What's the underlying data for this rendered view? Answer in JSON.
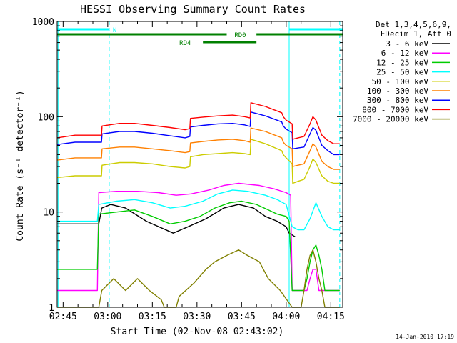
{
  "chart_data": {
    "type": "line",
    "title": "HESSI Observing Summary Count Rates",
    "xlabel": "Start Time (02-Nov-08 02:43:02)",
    "ylabel": "Count Rate (s⁻¹ detector⁻¹)",
    "footer": "14-Jan-2010 17:19",
    "x_unit": "minutes of day (UT)",
    "xlim": [
      163,
      259
    ],
    "ylim": [
      1,
      1000
    ],
    "y_scale": "log",
    "x_ticks": [
      {
        "value": 165,
        "label": "02:45"
      },
      {
        "value": 180,
        "label": "03:00"
      },
      {
        "value": 195,
        "label": "03:15"
      },
      {
        "value": 210,
        "label": "03:30"
      },
      {
        "value": 225,
        "label": "03:45"
      },
      {
        "value": 240,
        "label": "04:00"
      },
      {
        "value": 255,
        "label": "04:15"
      }
    ],
    "y_ticks": [
      {
        "value": 1,
        "label": "1"
      },
      {
        "value": 10,
        "label": "10"
      },
      {
        "value": 100,
        "label": "100"
      },
      {
        "value": 1000,
        "label": "1000"
      }
    ],
    "legend_header": [
      "Det 1,3,4,5,6,9,",
      "FDecim 1, Att 0"
    ],
    "legend_placement": "right",
    "series": [
      {
        "name": "3 - 6 keV",
        "color": "#000000",
        "x": [
          163,
          177,
          178,
          181,
          186,
          193,
          202,
          207,
          213,
          219,
          224,
          229,
          233,
          237,
          240,
          241,
          243
        ],
        "y": [
          7.5,
          7.5,
          11,
          12,
          11,
          8,
          6,
          7,
          8.5,
          11,
          12,
          11,
          9,
          8,
          7,
          6,
          5.5
        ]
      },
      {
        "name": "6 - 12 keV",
        "color": "#ff00ff",
        "x": [
          163,
          176.5,
          177,
          183,
          190,
          197,
          203,
          208,
          214,
          219,
          224,
          231,
          236,
          240,
          241.5,
          242,
          246,
          247,
          248,
          249,
          250,
          251,
          252,
          253.5,
          254,
          256,
          258
        ],
        "y": [
          1.5,
          1.5,
          16,
          16.5,
          16.5,
          16,
          15,
          15.5,
          17,
          19,
          20,
          19,
          17.5,
          16,
          15,
          1.5,
          1.5,
          1.5,
          2,
          2.5,
          2.5,
          1.5,
          1.5,
          1.5,
          1.5,
          1.5,
          1.5
        ]
      },
      {
        "name": "12 - 25 keV",
        "color": "#00cc00",
        "x": [
          163,
          176.5,
          177,
          183,
          189,
          195,
          201,
          206,
          211,
          216,
          221,
          225,
          230,
          234,
          237,
          240,
          241,
          242,
          246,
          247,
          248,
          249,
          250,
          251,
          252,
          253,
          254,
          256,
          258
        ],
        "y": [
          2.5,
          2.5,
          9.5,
          10,
          10.5,
          9,
          7.5,
          8,
          9,
          11,
          12.5,
          13,
          12,
          10.5,
          9.5,
          9,
          8,
          1.5,
          1.5,
          2,
          3,
          4,
          4.5,
          3.5,
          2.5,
          1.5,
          1.5,
          1.5,
          1.5
        ]
      },
      {
        "name": "25 - 50 keV",
        "color": "#00ffff",
        "x": [
          163,
          176.5,
          177,
          183,
          189,
          195,
          201,
          206,
          212,
          217,
          222,
          227,
          233,
          237,
          240,
          242,
          244,
          246,
          248,
          250,
          252,
          254,
          256,
          258
        ],
        "y": [
          8,
          8,
          12,
          13,
          13.5,
          12.5,
          11,
          11.5,
          13,
          15.5,
          17,
          16.5,
          15,
          13.5,
          12,
          7,
          6.5,
          6.5,
          8.5,
          12.5,
          9,
          7,
          6.5,
          6.5
        ]
      },
      {
        "name": "50 - 100 keV",
        "color": "#cccc00",
        "x": [
          163,
          169,
          177.9,
          178.1,
          184,
          189,
          195,
          201,
          206,
          207.6,
          207.8,
          212,
          217,
          222,
          226,
          227.9,
          228.1,
          233,
          238.5,
          239,
          240,
          242,
          242.2,
          244,
          246,
          248,
          249,
          250,
          252,
          254,
          256,
          258
        ],
        "y": [
          23,
          24,
          24,
          31,
          33,
          33,
          32,
          30,
          29,
          30,
          38,
          40,
          41,
          42,
          41,
          40,
          58,
          52,
          44,
          40,
          37,
          32,
          20,
          21,
          22,
          30,
          36,
          33,
          24,
          21,
          20,
          20
        ]
      },
      {
        "name": "100 - 300 keV",
        "color": "#ff8000",
        "x": [
          163,
          169,
          177.9,
          178.1,
          184,
          189,
          195,
          201,
          206,
          207.6,
          207.8,
          212,
          217,
          222,
          226,
          227.9,
          228.1,
          233,
          238.5,
          239,
          240,
          242,
          242.2,
          244,
          246,
          248,
          249,
          250,
          252,
          254,
          256,
          258
        ],
        "y": [
          35,
          37,
          37,
          46,
          48,
          48,
          46,
          44,
          42,
          43,
          53,
          55,
          57,
          58,
          56,
          54,
          76,
          70,
          60,
          54,
          50,
          46,
          30,
          31,
          32,
          44,
          52,
          48,
          34,
          30,
          28,
          28
        ]
      },
      {
        "name": "300 - 800 keV",
        "color": "#0000ff",
        "x": [
          163,
          169,
          177.9,
          178.1,
          184,
          189,
          195,
          201,
          206,
          207.6,
          207.8,
          212,
          217,
          222,
          226,
          227.9,
          228.1,
          233,
          238.5,
          239,
          240,
          242,
          242.2,
          244,
          246,
          248,
          249,
          250,
          252,
          254,
          256,
          258
        ],
        "y": [
          51,
          54,
          54,
          66,
          70,
          70,
          67,
          63,
          60,
          62,
          78,
          81,
          84,
          85,
          82,
          79,
          112,
          102,
          88,
          80,
          74,
          68,
          46,
          47,
          48,
          66,
          77,
          72,
          50,
          44,
          40,
          40
        ]
      },
      {
        "name": "800 - 7000 keV",
        "color": "#ff0000",
        "x": [
          163,
          169,
          177.9,
          178.1,
          184,
          189,
          195,
          201,
          206,
          207.6,
          207.8,
          212,
          217,
          222,
          226,
          227.9,
          228.1,
          233,
          238.5,
          239,
          240,
          242,
          242.2,
          244,
          246,
          248,
          249,
          250,
          252,
          254,
          256,
          258
        ],
        "y": [
          60,
          64,
          64,
          80,
          85,
          85,
          81,
          77,
          73,
          75,
          96,
          99,
          102,
          104,
          100,
          97,
          140,
          128,
          110,
          100,
          92,
          84,
          58,
          60,
          62,
          84,
          100,
          92,
          64,
          56,
          52,
          52
        ]
      },
      {
        "name": "7000 - 20000 keV",
        "color": "#808000",
        "x": [
          163,
          177,
          178,
          182,
          186,
          190,
          194,
          198,
          199,
          203,
          204,
          209,
          213,
          216,
          220,
          224,
          227,
          231,
          234,
          238,
          242,
          245,
          246,
          247,
          248,
          249,
          250,
          251,
          252,
          253,
          258
        ],
        "y": [
          1,
          1,
          1.5,
          2,
          1.5,
          2,
          1.5,
          1.2,
          1,
          1,
          1.3,
          1.8,
          2.5,
          3,
          3.5,
          4,
          3.5,
          3,
          2,
          1.5,
          1,
          1,
          1.5,
          2.5,
          3.5,
          4,
          3,
          2,
          1.5,
          1,
          1
        ]
      }
    ],
    "status_bars": [
      {
        "label": "N",
        "color": "#00ffff",
        "segments": [
          [
            163,
            180.5
          ],
          [
            241,
            259
          ]
        ]
      },
      {
        "label": "RD0",
        "color": "#008000",
        "segments": [
          [
            163,
            220
          ],
          [
            230,
            259
          ]
        ]
      },
      {
        "label": "RD4",
        "color": "#008000",
        "segments": [
          [
            212,
            230
          ]
        ]
      }
    ],
    "vertical_markers": [
      {
        "x": 163.3,
        "color": "#00ffff",
        "style": "solid"
      },
      {
        "x": 180.5,
        "color": "#00ffff",
        "style": "dashed"
      },
      {
        "x": 241,
        "color": "#00ffff",
        "style": "solid"
      },
      {
        "x": 258,
        "color": "#00ffff",
        "style": "dashed"
      }
    ]
  }
}
